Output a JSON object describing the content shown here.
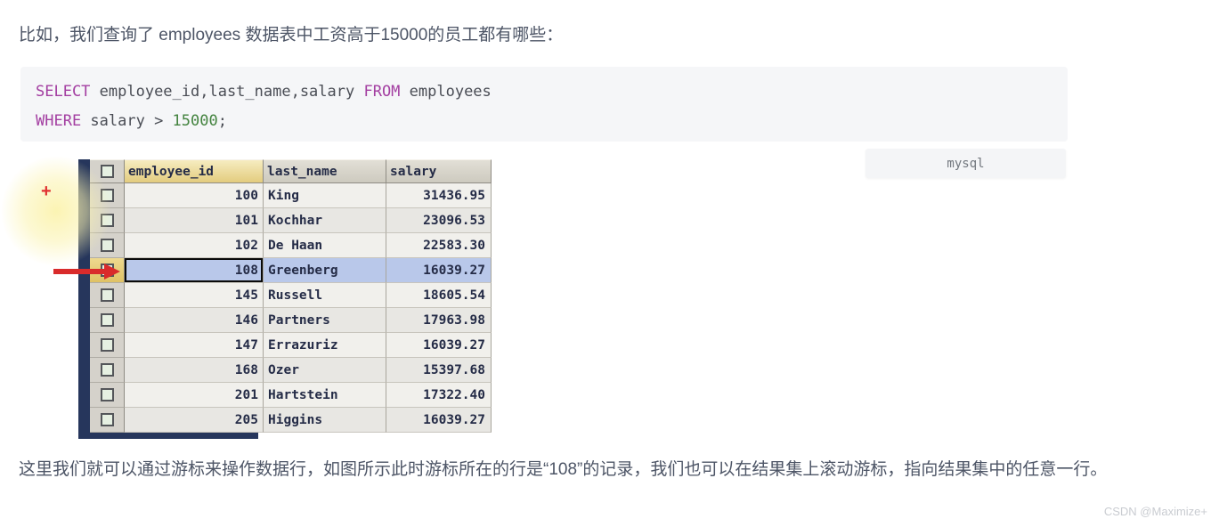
{
  "article": {
    "intro": "比如，我们查询了 employees 数据表中工资高于15000的员工都有哪些：",
    "outro": "这里我们就可以通过游标来操作数据行，如图所示此时游标所在的行是“108”的记录，我们也可以在结果集上滚动游标，指向结果集中的任意一行。"
  },
  "code_block": {
    "language_label": "mysql",
    "lines": [
      [
        {
          "text": "SELECT",
          "type": "keyword"
        },
        {
          "text": " employee_id,last_name,salary ",
          "type": "plain"
        },
        {
          "text": "FROM",
          "type": "keyword"
        },
        {
          "text": " employees",
          "type": "plain"
        }
      ],
      [
        {
          "text": "WHERE",
          "type": "keyword"
        },
        {
          "text": " salary > ",
          "type": "plain"
        },
        {
          "text": "15000",
          "type": "number"
        },
        {
          "text": ";",
          "type": "plain"
        }
      ]
    ]
  },
  "result_grid": {
    "columns": [
      "employee_id",
      "last_name",
      "salary"
    ],
    "rows": [
      [
        "100",
        "King",
        "31436.95"
      ],
      [
        "101",
        "Kochhar",
        "23096.53"
      ],
      [
        "102",
        "De Haan",
        "22583.30"
      ],
      [
        "108",
        "Greenberg",
        "16039.27"
      ],
      [
        "145",
        "Russell",
        "18605.54"
      ],
      [
        "146",
        "Partners",
        "17963.98"
      ],
      [
        "147",
        "Errazuriz",
        "16039.27"
      ],
      [
        "168",
        "Ozer",
        "15397.68"
      ],
      [
        "201",
        "Hartstein",
        "17322.40"
      ],
      [
        "205",
        "Higgins",
        "16039.27"
      ]
    ],
    "selected_row_index": 3,
    "selected_row_employee_id": "108"
  },
  "annotations": {
    "plus_cursor": "+"
  },
  "watermark": "CSDN @Maximize+",
  "colors": {
    "selected_row_bg": "#b9c8ea",
    "header_highlight_bg": "#e9d48a",
    "keyword": "#a33ea1",
    "number": "#43833f",
    "code_background": "#f5f6f8",
    "arrow_red": "#d92b2b",
    "gutter_navy": "#26365c"
  }
}
